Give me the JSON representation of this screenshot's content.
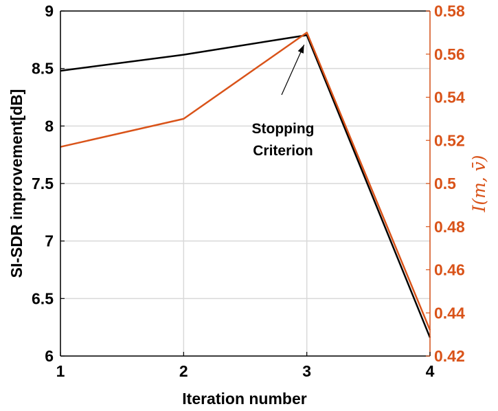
{
  "chart_data": {
    "type": "line",
    "title": "",
    "xlabel": "Iteration number",
    "ylabel_left": "SI-SDR improvement[dB]",
    "ylabel_right": "I(m, v̄)",
    "x": [
      1,
      2,
      3,
      4
    ],
    "x_ticks": [
      "1",
      "2",
      "3",
      "4"
    ],
    "xlim": [
      1,
      4
    ],
    "ylim_left": [
      6,
      9
    ],
    "ylim_right": [
      0.42,
      0.58
    ],
    "y_left_ticks": [
      "6",
      "6.5",
      "7",
      "7.5",
      "8",
      "8.5",
      "9"
    ],
    "y_right_ticks": [
      "0.42",
      "0.44",
      "0.46",
      "0.48",
      "0.5",
      "0.52",
      "0.54",
      "0.56",
      "0.58"
    ],
    "grid": true,
    "series": [
      {
        "axis": "left",
        "color": "#000000",
        "values": [
          8.48,
          8.62,
          8.79,
          6.16
        ]
      },
      {
        "axis": "right",
        "color": "#d95319",
        "values": [
          0.517,
          0.53,
          0.57,
          0.432
        ]
      }
    ],
    "annotation": {
      "lines": [
        "Stopping",
        "Criterion"
      ],
      "target_x": 3,
      "target_series": 0
    }
  },
  "colors": {
    "left_axis": "#000000",
    "right_axis": "#d95319",
    "grid": "#d9d9d9"
  }
}
